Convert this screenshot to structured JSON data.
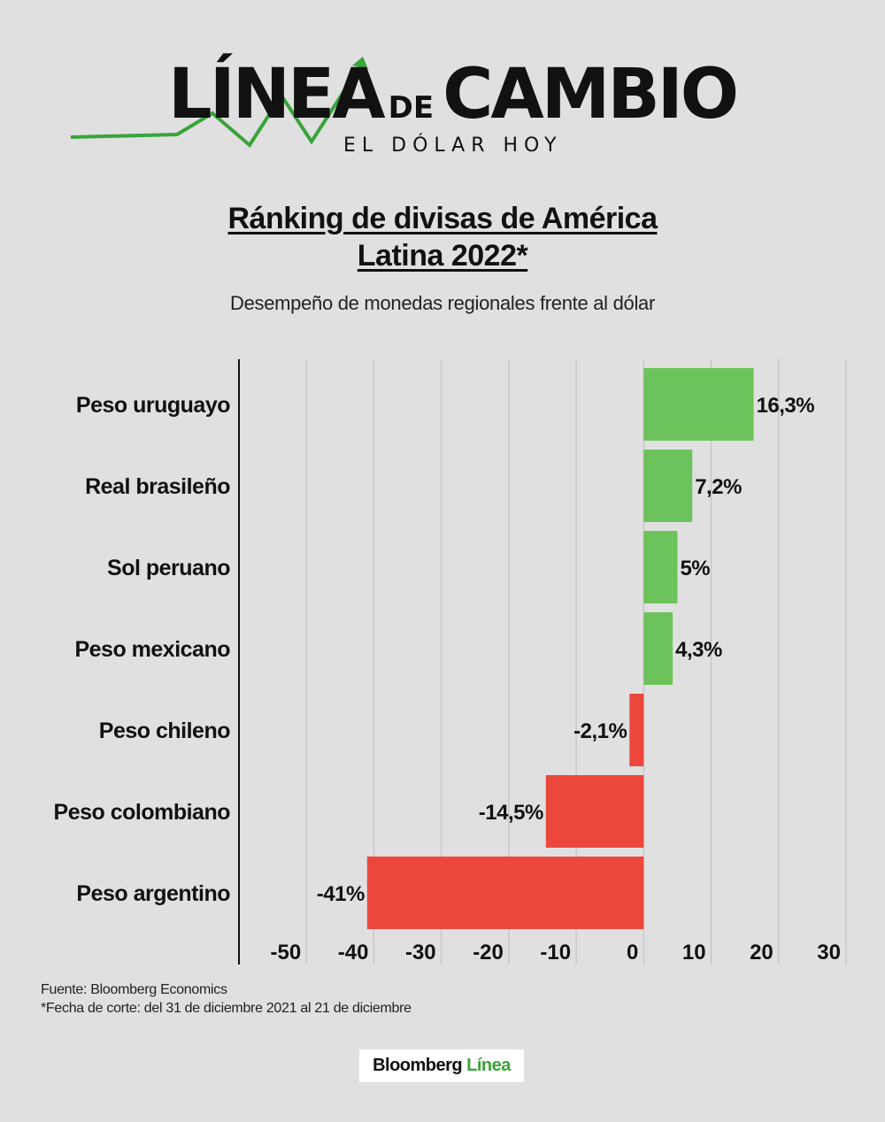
{
  "logo": {
    "word1": "LÍNEA",
    "word_de": "DE",
    "word2": "CAMBIO",
    "tagline": "EL DÓLAR HOY"
  },
  "title_line1": "Ránking de divisas de América",
  "title_line2": "Latina 2022*",
  "subtitle": "Desempeño de monedas regionales frente al dólar",
  "footer": {
    "source": "Fuente: Bloomberg Economics",
    "note": "*Fecha de corte: del 31 de diciembre 2021 al 21 de diciembre"
  },
  "brand": {
    "part1": "Bloomberg",
    "part2": "Línea"
  },
  "colors": {
    "positive": "#6cc35c",
    "negative": "#ec473c",
    "accent": "#3aa33a"
  },
  "chart_data": {
    "type": "bar",
    "orientation": "horizontal",
    "categories": [
      "Peso uruguayo",
      "Real brasileño",
      "Sol peruano",
      "Peso mexicano",
      "Peso chileno",
      "Peso colombiano",
      "Peso argentino"
    ],
    "values": [
      16.3,
      7.2,
      5,
      4.3,
      -2.1,
      -14.5,
      -41
    ],
    "data_labels": [
      "16,3%",
      "7,2%",
      "5%",
      "4,3%",
      "-2,1%",
      "-14,5%",
      "-41%"
    ],
    "xlim": [
      -60,
      30
    ],
    "xticks": [
      -50,
      -40,
      -30,
      -20,
      -10,
      0,
      10,
      20,
      30
    ],
    "xtick_labels": [
      "-50",
      "-40",
      "-30",
      "-20",
      "-10",
      "0",
      "10",
      "20",
      "30"
    ],
    "grid": true
  }
}
